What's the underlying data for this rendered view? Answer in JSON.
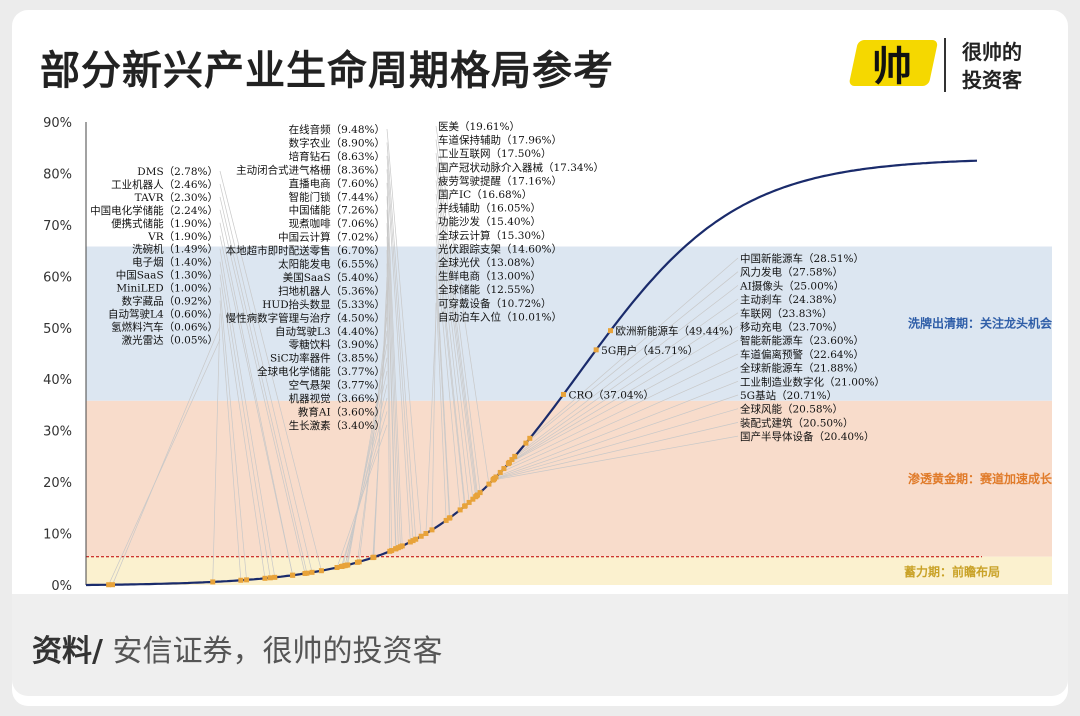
{
  "header": {
    "title": "部分新兴产业生命周期格局参考",
    "logo_mark": "帅",
    "logo_line1": "很帅的",
    "logo_line2": "投资客"
  },
  "footer": {
    "source_label": "资料/",
    "source_text": "安信证券，很帅的投资客"
  },
  "colors": {
    "curve": "#1a2b6b",
    "markers": "#e8a33a",
    "zone_top": "#dce6f1",
    "zone_mid": "#f8dccb",
    "zone_bottom": "#fbf1cf",
    "threshold_line": "#c00000",
    "logo_yellow": "#f5d800"
  },
  "chart_data": {
    "type": "line",
    "title": "",
    "xlabel": "",
    "ylabel": "",
    "ylim": [
      0,
      90
    ],
    "yticks": [
      "0%",
      "10%",
      "20%",
      "30%",
      "40%",
      "50%",
      "60%",
      "70%",
      "80%",
      "90%"
    ],
    "grid": false,
    "threshold_line_value": 5.5,
    "zones": [
      {
        "label": "洗牌出清期：关注龙头机会",
        "from": 35.8,
        "to": 65.8,
        "color": "#dce6f1",
        "label_color": "#2f5ea8"
      },
      {
        "label": "渗透黄金期：赛道加速成长",
        "from": 5.5,
        "to": 35.8,
        "color": "#f8dccb",
        "label_color": "#e07b2a"
      },
      {
        "label": "蓄力期：前瞻布局",
        "from": 0,
        "to": 5.5,
        "color": "#fbf1cf",
        "label_color": "#c9a227"
      }
    ],
    "series": [
      {
        "name": "",
        "shape": "s-curve",
        "max_value": 83
      }
    ],
    "groups": [
      {
        "items": [
          {
            "label": "DMS（2.78%）",
            "value": 2.78
          },
          {
            "label": "工业机器人（2.46%）",
            "value": 2.46
          },
          {
            "label": "TAVR（2.30%）",
            "value": 2.3
          },
          {
            "label": "中国电化学储能（2.24%）",
            "value": 2.24
          },
          {
            "label": "便携式储能（1.90%）",
            "value": 1.9
          },
          {
            "label": "VR（1.90%）",
            "value": 1.9
          },
          {
            "label": "洗碗机（1.49%）",
            "value": 1.49
          },
          {
            "label": "电子烟（1.40%）",
            "value": 1.4
          },
          {
            "label": "中国SaaS（1.30%）",
            "value": 1.3
          },
          {
            "label": "MiniLED（1.00%）",
            "value": 1.0
          },
          {
            "label": "数字藏品（0.92%）",
            "value": 0.92
          },
          {
            "label": "自动驾驶L4（0.60%）",
            "value": 0.6
          },
          {
            "label": "氢燃料汽车（0.06%）",
            "value": 0.06
          },
          {
            "label": "激光雷达（0.05%）",
            "value": 0.05
          }
        ]
      },
      {
        "items": [
          {
            "label": "在线音频（9.48%）",
            "value": 9.48
          },
          {
            "label": "数字农业（8.90%）",
            "value": 8.9
          },
          {
            "label": "培育钻石（8.63%）",
            "value": 8.63
          },
          {
            "label": "主动闭合式进气格栅（8.36%）",
            "value": 8.36
          },
          {
            "label": "直播电商（7.60%）",
            "value": 7.6
          },
          {
            "label": "智能门锁（7.44%）",
            "value": 7.44
          },
          {
            "label": "中国储能（7.26%）",
            "value": 7.26
          },
          {
            "label": "现煮咖啡（7.06%）",
            "value": 7.06
          },
          {
            "label": "中国云计算（7.02%）",
            "value": 7.02
          },
          {
            "label": "本地超市即时配送零售（6.70%）",
            "value": 6.7
          },
          {
            "label": "太阳能发电（6.55%）",
            "value": 6.55
          },
          {
            "label": "美国SaaS（5.40%）",
            "value": 5.4
          },
          {
            "label": "扫地机器人（5.36%）",
            "value": 5.36
          },
          {
            "label": "HUD抬头数显（5.33%）",
            "value": 5.33
          },
          {
            "label": "慢性病数字管理与治疗（4.50%）",
            "value": 4.5
          },
          {
            "label": "自动驾驶L3（4.40%）",
            "value": 4.4
          },
          {
            "label": "零糖饮料（3.90%）",
            "value": 3.9
          },
          {
            "label": "SiC功率器件（3.85%）",
            "value": 3.85
          },
          {
            "label": "全球电化学储能（3.77%）",
            "value": 3.77
          },
          {
            "label": "空气悬架（3.77%）",
            "value": 3.77
          },
          {
            "label": "机器视觉（3.66%）",
            "value": 3.66
          },
          {
            "label": "教育AI（3.60%）",
            "value": 3.6
          },
          {
            "label": "生长激素（3.40%）",
            "value": 3.4
          }
        ]
      },
      {
        "items": [
          {
            "label": "医美（19.61%）",
            "value": 19.61
          },
          {
            "label": "车道保持辅助（17.96%）",
            "value": 17.96
          },
          {
            "label": "工业互联网（17.50%）",
            "value": 17.5
          },
          {
            "label": "国产冠状动脉介入器械（17.34%）",
            "value": 17.34
          },
          {
            "label": "疲劳驾驶提醒（17.16%）",
            "value": 17.16
          },
          {
            "label": "国产IC（16.68%）",
            "value": 16.68
          },
          {
            "label": "并线辅助（16.05%）",
            "value": 16.05
          },
          {
            "label": "功能沙发（15.40%）",
            "value": 15.4
          },
          {
            "label": "全球云计算（15.30%）",
            "value": 15.3
          },
          {
            "label": "光伏跟踪支架（14.60%）",
            "value": 14.6
          },
          {
            "label": "全球光伏（13.08%）",
            "value": 13.08
          },
          {
            "label": "生鲜电商（13.00%）",
            "value": 13.0
          },
          {
            "label": "全球储能（12.55%）",
            "value": 12.55
          },
          {
            "label": "可穿戴设备（10.72%）",
            "value": 10.72
          },
          {
            "label": "自动泊车入位（10.01%）",
            "value": 10.01
          }
        ]
      },
      {
        "items": [
          {
            "label": "中国新能源车（28.51%）",
            "value": 28.51
          },
          {
            "label": "风力发电（27.58%）",
            "value": 27.58
          },
          {
            "label": "AI摄像头（25.00%）",
            "value": 25.0
          },
          {
            "label": "主动刹车（24.38%）",
            "value": 24.38
          },
          {
            "label": "车联网（23.83%）",
            "value": 23.83
          },
          {
            "label": "移动充电（23.70%）",
            "value": 23.7
          },
          {
            "label": "智能新能源车（23.60%）",
            "value": 23.6
          },
          {
            "label": "车道偏离预警（22.64%）",
            "value": 22.64
          },
          {
            "label": "全球新能源车（21.88%）",
            "value": 21.88
          },
          {
            "label": "工业制造业数字化（21.00%）",
            "value": 21.0
          },
          {
            "label": "5G基站（20.71%）",
            "value": 20.71
          },
          {
            "label": "全球风能（20.58%）",
            "value": 20.58
          },
          {
            "label": "装配式建筑（20.50%）",
            "value": 20.5
          },
          {
            "label": "国产半导体设备（20.40%）",
            "value": 20.4
          }
        ]
      }
    ],
    "on_curve": [
      {
        "label": "欧洲新能源车（49.44%）",
        "value": 49.44
      },
      {
        "label": "5G用户（45.71%）",
        "value": 45.71
      },
      {
        "label": "CRO（37.04%）",
        "value": 37.04
      }
    ]
  }
}
